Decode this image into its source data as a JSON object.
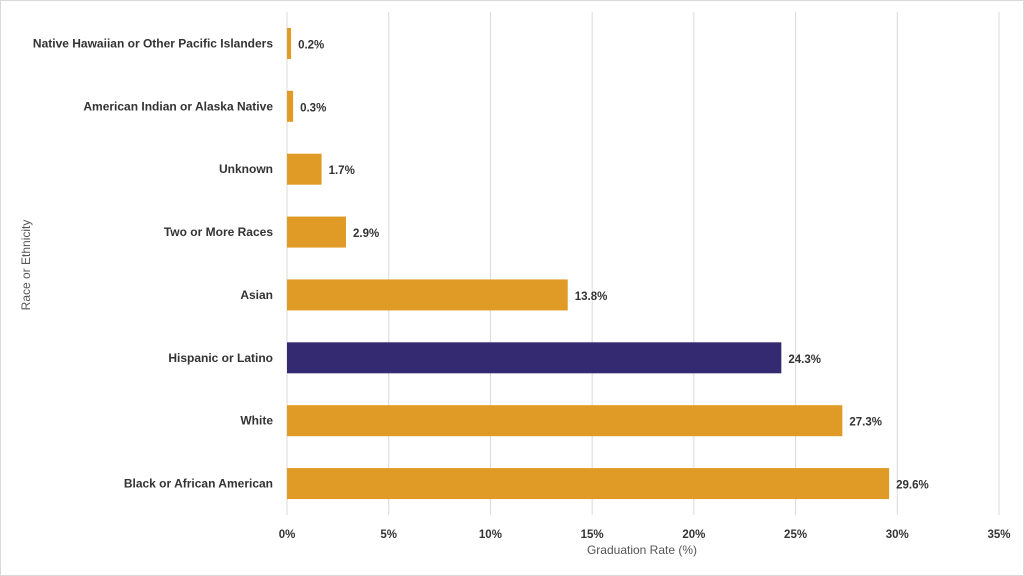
{
  "chart_data": {
    "type": "bar",
    "orientation": "horizontal",
    "categories": [
      "Native Hawaiian or Other Pacific Islanders",
      "American Indian or Alaska Native",
      "Unknown",
      "Two or More Races",
      "Asian",
      "Hispanic or Latino",
      "White",
      "Black or African American"
    ],
    "values": [
      0.2,
      0.3,
      1.7,
      2.9,
      13.8,
      24.3,
      27.3,
      29.6
    ],
    "value_labels": [
      "0.2%",
      "0.3%",
      "1.7%",
      "2.9%",
      "13.8%",
      "24.3%",
      "27.3%",
      "29.6%"
    ],
    "bar_colors": [
      "#E09B26",
      "#E09B26",
      "#E09B26",
      "#E09B26",
      "#E09B26",
      "#332A72",
      "#E09B26",
      "#E09B26"
    ],
    "xlabel": "Graduation Rate (%)",
    "ylabel": "Race or Ethnicity",
    "xlim": [
      0,
      35
    ],
    "xticks": [
      0,
      5,
      10,
      15,
      20,
      25,
      30,
      35
    ],
    "xtick_labels": [
      "0%",
      "5%",
      "10%",
      "15%",
      "20%",
      "25%",
      "30%",
      "35%"
    ],
    "grid": "vertical",
    "legend": "none"
  }
}
